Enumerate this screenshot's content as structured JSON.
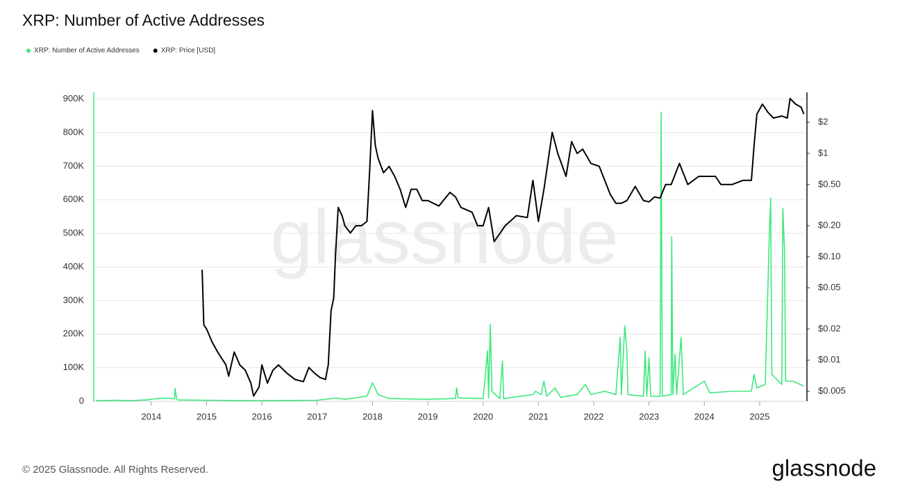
{
  "chart_data": {
    "type": "line",
    "title": "XRP: Number of Active Addresses",
    "footer": "© 2025 Glassnode. All Rights Reserved.",
    "logo": "glassnode",
    "watermark": "glassnode",
    "grid": true,
    "legend": "top-left",
    "xlim": [
      2012.96,
      2025.83
    ],
    "xticks": [
      2014,
      2015,
      2016,
      2017,
      2018,
      2019,
      2020,
      2021,
      2022,
      2023,
      2024,
      2025
    ],
    "ylim": [
      0,
      920000
    ],
    "yticks": [
      0,
      {
        "value": 100000,
        "label": "100K"
      },
      {
        "value": 200000,
        "label": "200K"
      },
      {
        "value": 300000,
        "label": "300K"
      },
      {
        "value": 400000,
        "label": "400K"
      },
      {
        "value": 500000,
        "label": "500K"
      },
      {
        "value": 600000,
        "label": "600K"
      },
      {
        "value": 700000,
        "label": "700K"
      },
      {
        "value": 800000,
        "label": "800K"
      },
      {
        "value": 900000,
        "label": "900K"
      }
    ],
    "y2lim": [
      0.004,
      3.9
    ],
    "y2scale": "log",
    "y2ticks": [
      {
        "value": 0.005,
        "label": "$0.005"
      },
      {
        "value": 0.01,
        "label": "$0.01"
      },
      {
        "value": 0.02,
        "label": "$0.02"
      },
      {
        "value": 0.05,
        "label": "$0.05"
      },
      {
        "value": 0.1,
        "label": "$0.10"
      },
      {
        "value": 0.2,
        "label": "$0.20"
      },
      {
        "value": 0.5,
        "label": "$0.50"
      },
      {
        "value": 1,
        "label": "$1"
      },
      {
        "value": 2,
        "label": "$2"
      }
    ],
    "series": [
      {
        "name": "XRP: Number of Active Addresses",
        "color": "#3ee87d",
        "axis": "y",
        "x": [
          2013.0,
          2013.4,
          2013.6,
          2013.9,
          2014.1,
          2014.3,
          2014.42,
          2014.43,
          2014.46,
          2014.5,
          2015.0,
          2016.0,
          2017.0,
          2017.35,
          2017.5,
          2017.9,
          2018.0,
          2018.1,
          2018.3,
          2019.0,
          2019.5,
          2019.52,
          2019.55,
          2020.0,
          2020.08,
          2020.1,
          2020.13,
          2020.16,
          2020.3,
          2020.35,
          2020.37,
          2020.9,
          2020.95,
          2021.05,
          2021.1,
          2021.15,
          2021.3,
          2021.4,
          2021.7,
          2021.85,
          2021.95,
          2022.2,
          2022.4,
          2022.48,
          2022.5,
          2022.56,
          2022.6,
          2022.62,
          2022.9,
          2022.93,
          2022.96,
          2023.0,
          2023.03,
          2023.2,
          2023.22,
          2023.24,
          2023.4,
          2023.41,
          2023.43,
          2023.47,
          2023.5,
          2023.58,
          2023.62,
          2024.0,
          2024.1,
          2024.5,
          2024.85,
          2024.9,
          2024.95,
          2025.1,
          2025.18,
          2025.2,
          2025.22,
          2025.4,
          2025.42,
          2025.45,
          2025.47,
          2025.6,
          2025.8
        ],
        "values": [
          2000,
          3000,
          2000,
          4000,
          8000,
          9000,
          7000,
          38000,
          6000,
          4000,
          3000,
          2000,
          3000,
          10000,
          6000,
          15000,
          55000,
          20000,
          8000,
          6000,
          8000,
          40000,
          10000,
          8000,
          150000,
          10000,
          230000,
          30000,
          8000,
          120000,
          8000,
          20000,
          30000,
          20000,
          60000,
          15000,
          40000,
          12000,
          20000,
          50000,
          20000,
          30000,
          20000,
          190000,
          20000,
          225000,
          150000,
          20000,
          15000,
          150000,
          15000,
          130000,
          15000,
          15000,
          860000,
          15000,
          20000,
          490000,
          20000,
          140000,
          20000,
          190000,
          20000,
          60000,
          25000,
          30000,
          30000,
          80000,
          40000,
          50000,
          520000,
          605000,
          80000,
          50000,
          575000,
          450000,
          60000,
          60000,
          45000
        ]
      },
      {
        "name": "XRP: Price [USD]",
        "color": "#000000",
        "axis": "y2",
        "x": [
          2014.92,
          2014.95,
          2015.0,
          2015.1,
          2015.2,
          2015.35,
          2015.4,
          2015.5,
          2015.6,
          2015.7,
          2015.8,
          2015.85,
          2015.95,
          2016.0,
          2016.1,
          2016.2,
          2016.3,
          2016.45,
          2016.6,
          2016.75,
          2016.85,
          2016.95,
          2017.05,
          2017.15,
          2017.2,
          2017.25,
          2017.3,
          2017.33,
          2017.38,
          2017.45,
          2017.5,
          2017.6,
          2017.7,
          2017.8,
          2017.9,
          2017.95,
          2018.0,
          2018.05,
          2018.1,
          2018.2,
          2018.3,
          2018.4,
          2018.5,
          2018.6,
          2018.7,
          2018.8,
          2018.9,
          2019.0,
          2019.2,
          2019.4,
          2019.5,
          2019.6,
          2019.8,
          2019.9,
          2020.0,
          2020.1,
          2020.2,
          2020.4,
          2020.6,
          2020.8,
          2020.9,
          2021.0,
          2021.1,
          2021.25,
          2021.35,
          2021.5,
          2021.6,
          2021.7,
          2021.8,
          2021.95,
          2022.1,
          2022.3,
          2022.4,
          2022.5,
          2022.6,
          2022.75,
          2022.9,
          2023.0,
          2023.1,
          2023.2,
          2023.3,
          2023.4,
          2023.55,
          2023.7,
          2023.9,
          2024.0,
          2024.2,
          2024.3,
          2024.5,
          2024.7,
          2024.85,
          2024.9,
          2024.95,
          2025.05,
          2025.15,
          2025.25,
          2025.4,
          2025.5,
          2025.55,
          2025.65,
          2025.75,
          2025.8
        ],
        "values": [
          0.075,
          0.022,
          0.02,
          0.015,
          0.012,
          0.009,
          0.007,
          0.012,
          0.009,
          0.008,
          0.006,
          0.0045,
          0.0055,
          0.009,
          0.006,
          0.008,
          0.009,
          0.0075,
          0.0065,
          0.0062,
          0.0085,
          0.0075,
          0.0068,
          0.0065,
          0.009,
          0.03,
          0.04,
          0.1,
          0.3,
          0.25,
          0.2,
          0.17,
          0.2,
          0.2,
          0.22,
          0.7,
          2.6,
          1.2,
          0.9,
          0.65,
          0.75,
          0.6,
          0.45,
          0.3,
          0.45,
          0.45,
          0.35,
          0.35,
          0.31,
          0.42,
          0.38,
          0.3,
          0.27,
          0.2,
          0.2,
          0.3,
          0.14,
          0.2,
          0.25,
          0.24,
          0.55,
          0.22,
          0.45,
          1.6,
          1.0,
          0.6,
          1.3,
          1.0,
          1.1,
          0.8,
          0.75,
          0.4,
          0.33,
          0.33,
          0.35,
          0.48,
          0.35,
          0.34,
          0.38,
          0.37,
          0.5,
          0.5,
          0.8,
          0.5,
          0.6,
          0.6,
          0.6,
          0.5,
          0.5,
          0.55,
          0.55,
          1.2,
          2.4,
          3.0,
          2.5,
          2.2,
          2.3,
          2.2,
          3.4,
          3.0,
          2.8,
          2.4
        ]
      }
    ]
  }
}
